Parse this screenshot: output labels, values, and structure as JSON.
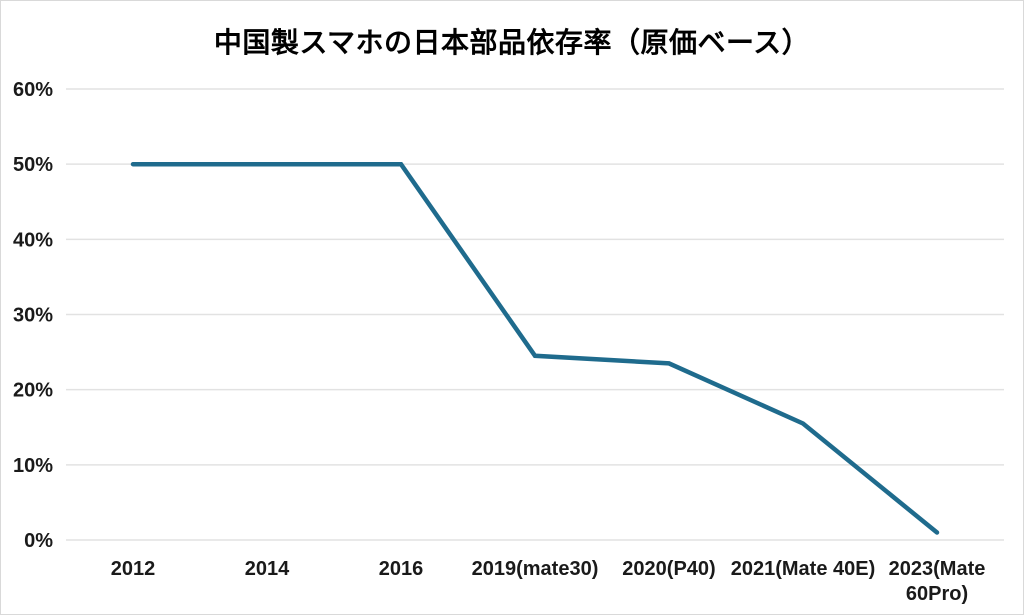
{
  "chart_data": {
    "type": "line",
    "title": "中国製スマホの日本部品依存率（原価ベース）",
    "categories": [
      "2012",
      "2014",
      "2016",
      "2019(mate30)",
      "2020(P40)",
      "2021(Mate 40E)",
      "2023(Mate 60Pro)"
    ],
    "values": [
      50,
      50,
      50,
      24.5,
      23.5,
      15.5,
      1
    ],
    "unit": "%",
    "xlabel": "",
    "ylabel": "",
    "ylim": [
      0,
      60
    ],
    "ytick_step": 10,
    "ytick_labels": [
      "0%",
      "10%",
      "20%",
      "30%",
      "40%",
      "50%",
      "60%"
    ],
    "grid": "horizontal",
    "legend": "none",
    "line_color": "#1f6b8d",
    "gridline_color": "#e2e2e2",
    "label_color": "#1a1a1a",
    "background_color": "#ffffff",
    "frame_border_color": "#d9d9d9"
  }
}
